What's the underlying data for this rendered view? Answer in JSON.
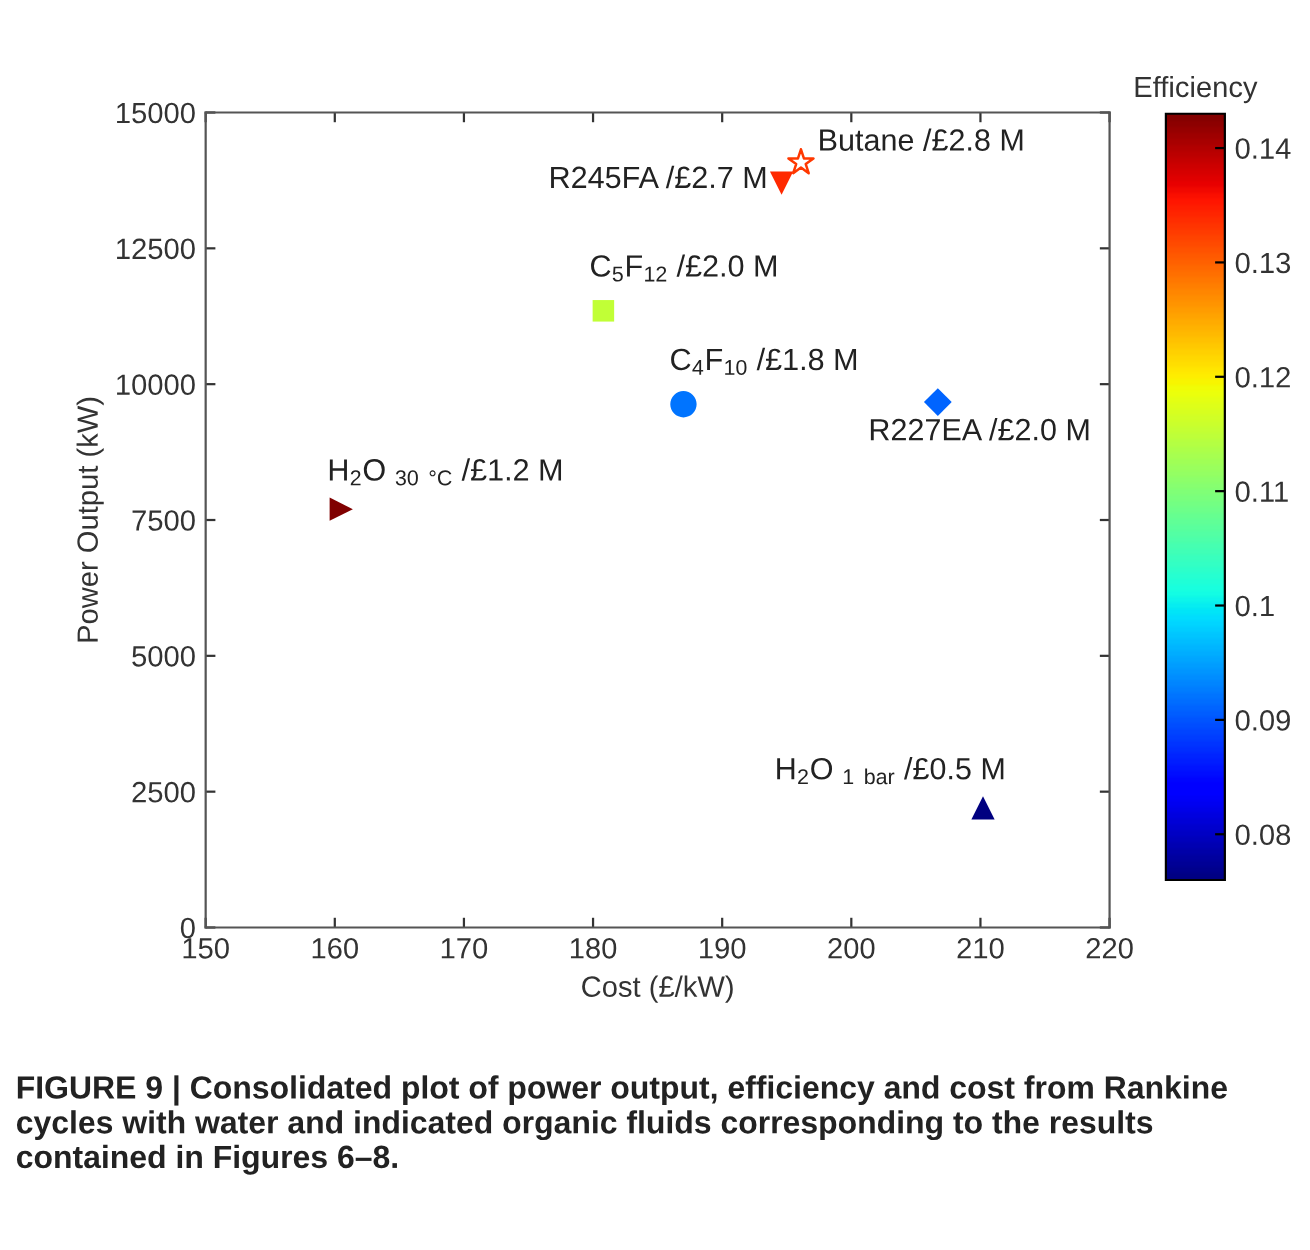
{
  "chart_data": {
    "type": "scatter",
    "xlabel": "Cost (£/kW)",
    "ylabel": "Power Output (kW)",
    "clabel": "Efficiency",
    "xlim": [
      150,
      220
    ],
    "xticks": [
      150,
      160,
      170,
      180,
      190,
      200,
      210,
      220
    ],
    "ylim": [
      0,
      15000
    ],
    "yticks": [
      0,
      2500,
      5000,
      7500,
      10000,
      12500,
      15000
    ],
    "clim": [
      0.076,
      0.143
    ],
    "cticks": [
      0.08,
      0.09,
      0.1,
      0.11,
      0.12,
      0.13,
      0.14
    ],
    "grid": false,
    "legend": false,
    "series": [
      {
        "name": "H$_{2}$O $_{30}$ $_{°C}$ /£1.2 M",
        "marker": "triangle_right",
        "x": [
          160.5
        ],
        "values": [
          7700
        ],
        "cvalues": [
          0.143
        ]
      },
      {
        "name": "C$_{5}$F$_{12}$ /£2.0 M",
        "marker": "square",
        "x": [
          180.8
        ],
        "values": [
          11350
        ],
        "cvalues": [
          0.115
        ]
      },
      {
        "name": "C$_{4}$F$_{10}$ /£1.8 M",
        "marker": "circle",
        "x": [
          187.0
        ],
        "values": [
          9630
        ],
        "cvalues": [
          0.092
        ]
      },
      {
        "name": "R227EA /£2.0 M",
        "marker": "diamond",
        "x": [
          206.7
        ],
        "values": [
          9670
        ],
        "cvalues": [
          0.091
        ]
      },
      {
        "name": "R245FA /£2.7 M",
        "marker": "triangle_down",
        "x": [
          194.6
        ],
        "values": [
          13700
        ],
        "cvalues": [
          0.134
        ]
      },
      {
        "name": "Butane /£2.8 M",
        "marker": "star",
        "x": [
          196.1
        ],
        "values": [
          14080
        ],
        "cvalues": [
          0.133
        ]
      },
      {
        "name": "H$_{2}$O $_{1}$ $_{bar}$ /£0.5 M",
        "marker": "triangle",
        "x": [
          210.2
        ],
        "values": [
          2200
        ],
        "cvalues": [
          0.073
        ]
      }
    ],
    "annotations": [
      "FIGURE 9 | Consolidated plot of power output, efficiency and cost from Rankine cycles with water and indicated organic fluids corresponding to the results contained in Figures 6–8."
    ]
  }
}
